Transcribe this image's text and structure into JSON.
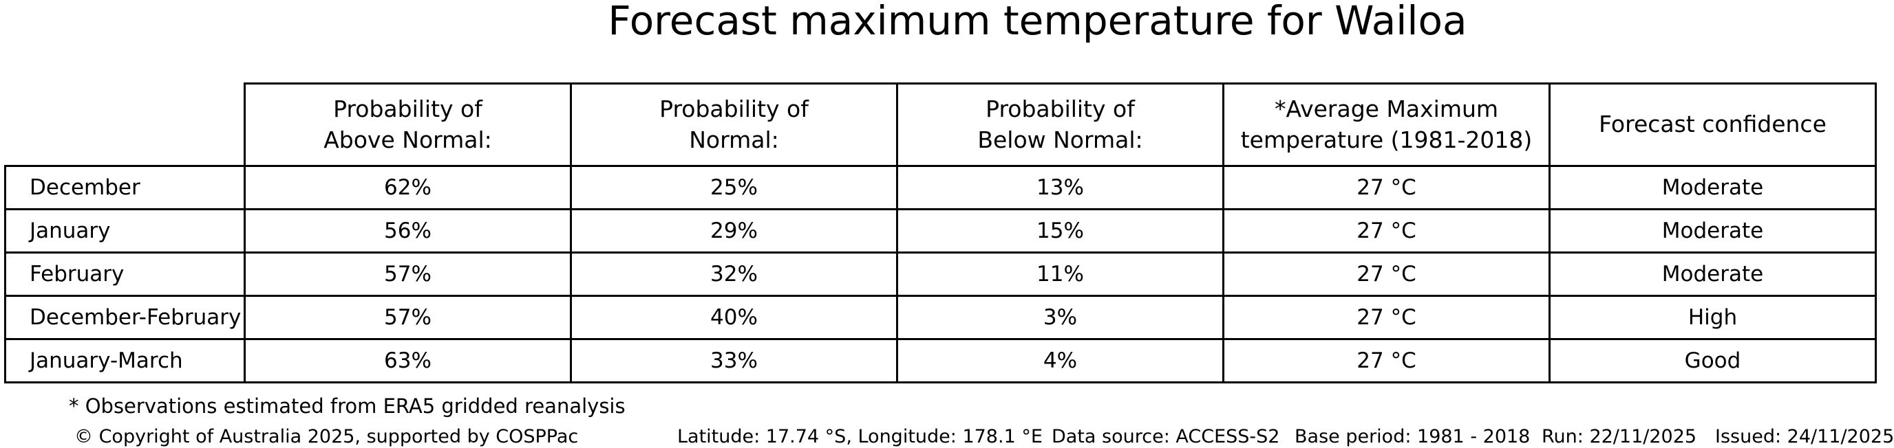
{
  "title": "Forecast maximum temperature for Wailoa",
  "colors": {
    "background": "#ffffff",
    "text": "#000000",
    "border": "#000000"
  },
  "table": {
    "headers": [
      {
        "line1": "Probability of",
        "line2": "Above Normal:"
      },
      {
        "line1": "Probability of",
        "line2": "Normal:"
      },
      {
        "line1": "Probability of",
        "line2": "Below Normal:"
      },
      {
        "line1": "*Average Maximum",
        "line2": "temperature (1981-2018)"
      },
      {
        "line1": "Forecast confidence",
        "line2": ""
      }
    ],
    "rows": [
      {
        "label": "December",
        "cells": [
          "62%",
          "25%",
          "13%",
          "27 °C",
          "Moderate"
        ]
      },
      {
        "label": "January",
        "cells": [
          "56%",
          "29%",
          "15%",
          "27 °C",
          "Moderate"
        ]
      },
      {
        "label": "February",
        "cells": [
          "57%",
          "32%",
          "11%",
          "27 °C",
          "Moderate"
        ]
      },
      {
        "label": "December-February",
        "cells": [
          "57%",
          "40%",
          "3%",
          "27 °C",
          "High"
        ]
      },
      {
        "label": "January-March",
        "cells": [
          "63%",
          "33%",
          "4%",
          "27 °C",
          "Good"
        ]
      }
    ]
  },
  "footnote": "* Observations estimated from ERA5 gridded reanalysis",
  "footer": {
    "copyright": "© Copyright of Australia 2025, supported by COSPPac",
    "location": "Latitude: 17.74 °S, Longitude: 178.1 °E",
    "data_source": "Data source: ACCESS-S2",
    "base_period": "Base period: 1981 - 2018",
    "run": "Run: 22/11/2025",
    "issued": "Issued: 24/11/2025"
  },
  "chart_data": {
    "type": "table",
    "title": "Forecast maximum temperature for Wailoa",
    "columns": [
      "",
      "Probability of Above Normal:",
      "Probability of Normal:",
      "Probability of Below Normal:",
      "*Average Maximum temperature (1981-2018)",
      "Forecast confidence"
    ],
    "rows": [
      [
        "December",
        "62%",
        "25%",
        "13%",
        "27 °C",
        "Moderate"
      ],
      [
        "January",
        "56%",
        "29%",
        "15%",
        "27 °C",
        "Moderate"
      ],
      [
        "February",
        "57%",
        "32%",
        "11%",
        "27 °C",
        "Moderate"
      ],
      [
        "December-February",
        "57%",
        "40%",
        "3%",
        "27 °C",
        "High"
      ],
      [
        "January-March",
        "63%",
        "33%",
        "4%",
        "27 °C",
        "Good"
      ]
    ],
    "footnote": "* Observations estimated from ERA5 gridded reanalysis",
    "legend_position": "none",
    "grid": true
  }
}
